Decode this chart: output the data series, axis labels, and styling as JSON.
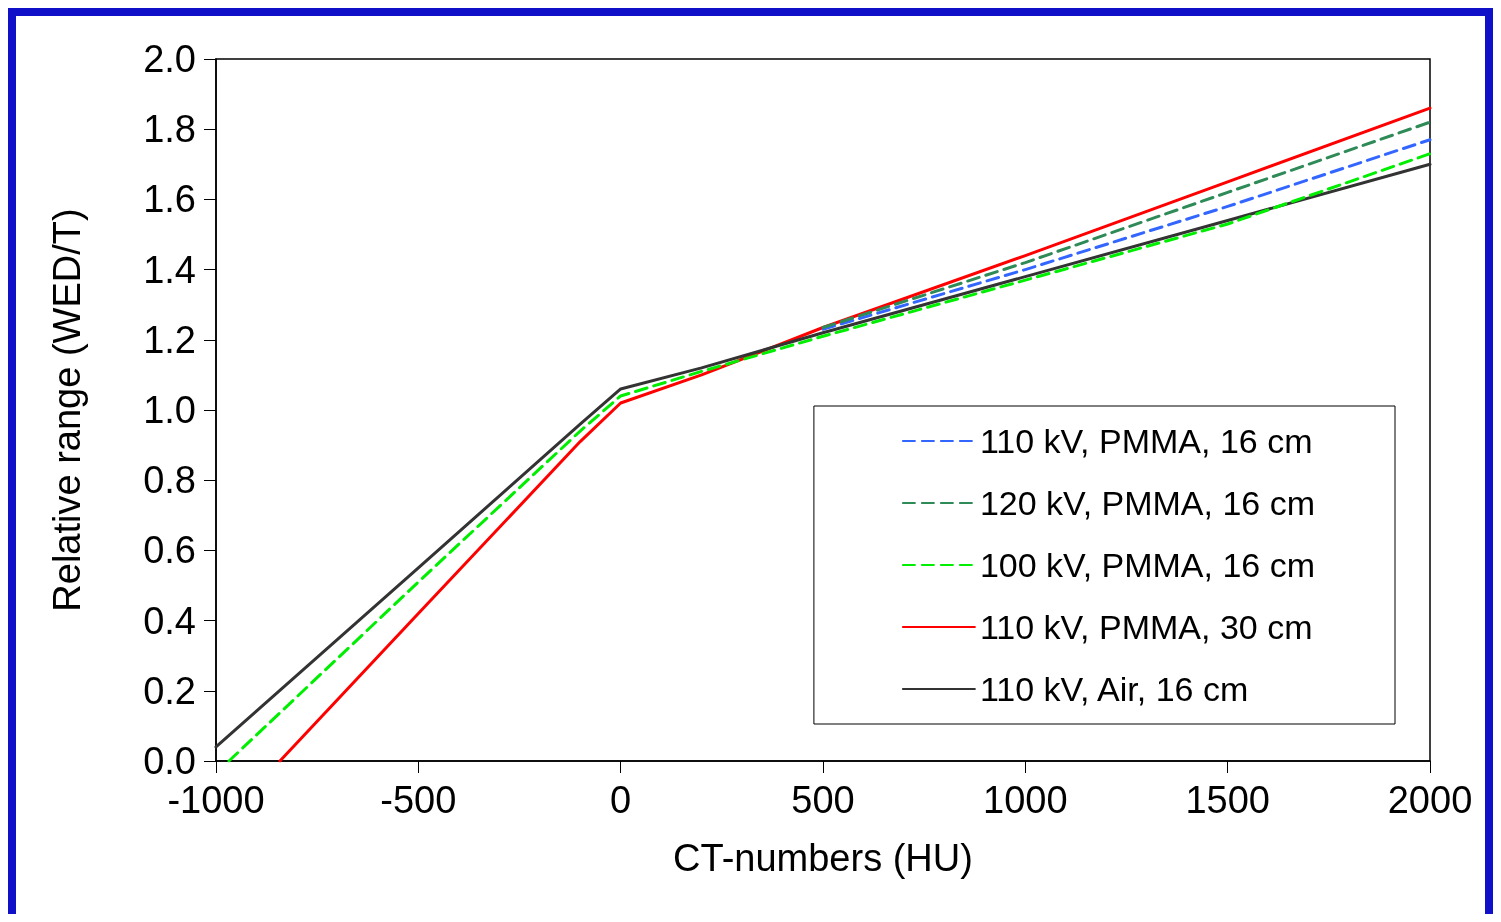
{
  "chart_data": {
    "type": "line",
    "xlabel": "CT-numbers (HU)",
    "ylabel": "Relative range (WED/T)",
    "xlim": [
      -1000,
      2000
    ],
    "xticks": [
      -1000,
      -500,
      0,
      500,
      1000,
      1500,
      2000
    ],
    "ylim": [
      0,
      2
    ],
    "yticks": [
      {
        "value": 0,
        "label": "0.0"
      },
      {
        "value": 0.2,
        "label": "0.2"
      },
      {
        "value": 0.4,
        "label": "0.4"
      },
      {
        "value": 0.6,
        "label": "0.6"
      },
      {
        "value": 0.8,
        "label": "0.8"
      },
      {
        "value": 1,
        "label": "1.0"
      },
      {
        "value": 1.2,
        "label": "1.2"
      },
      {
        "value": 1.4,
        "label": "1.4"
      },
      {
        "value": 1.6,
        "label": "1.6"
      },
      {
        "value": 1.8,
        "label": "1.8"
      },
      {
        "value": 2,
        "label": "2.0"
      }
    ],
    "grid": false,
    "legend": "bottom right",
    "marker": "none",
    "series": [
      {
        "name": "110 kV, PMMA, 16 cm",
        "color": "#3366ff",
        "line_style": "dashed",
        "x": [
          500,
          1000,
          1500,
          2000
        ],
        "values": [
          1.23,
          1.4,
          1.58,
          1.77
        ]
      },
      {
        "name": "120 kV, PMMA, 16 cm",
        "color": "#2e8b57",
        "line_style": "dashed",
        "x": [
          500,
          1000,
          1500,
          2000
        ],
        "values": [
          1.235,
          1.42,
          1.62,
          1.82
        ]
      },
      {
        "name": "100 kV, PMMA, 16 cm",
        "color": "#00ee00",
        "line_style": "dashed",
        "x": [
          -968,
          -500,
          -100,
          0,
          200,
          500,
          1000,
          1500,
          2000
        ],
        "values": [
          0,
          0.51,
          0.94,
          1.04,
          1.11,
          1.21,
          1.37,
          1.53,
          1.73
        ]
      },
      {
        "name": "110 kV, PMMA, 30 cm",
        "color": "#ff0000",
        "line_style": "solid",
        "x": [
          -842,
          -500,
          -100,
          0,
          200,
          500,
          1000,
          1500,
          2000
        ],
        "values": [
          0,
          0.42,
          0.91,
          1.02,
          1.1,
          1.235,
          1.44,
          1.65,
          1.86
        ]
      },
      {
        "name": "110 kV, Air, 16 cm",
        "color": "#333333",
        "line_style": "solid",
        "x": [
          -1000,
          -500,
          -100,
          0,
          200,
          500,
          1000,
          1500,
          2000
        ],
        "values": [
          0.04,
          0.55,
          0.96,
          1.06,
          1.12,
          1.22,
          1.38,
          1.54,
          1.7
        ]
      }
    ]
  }
}
